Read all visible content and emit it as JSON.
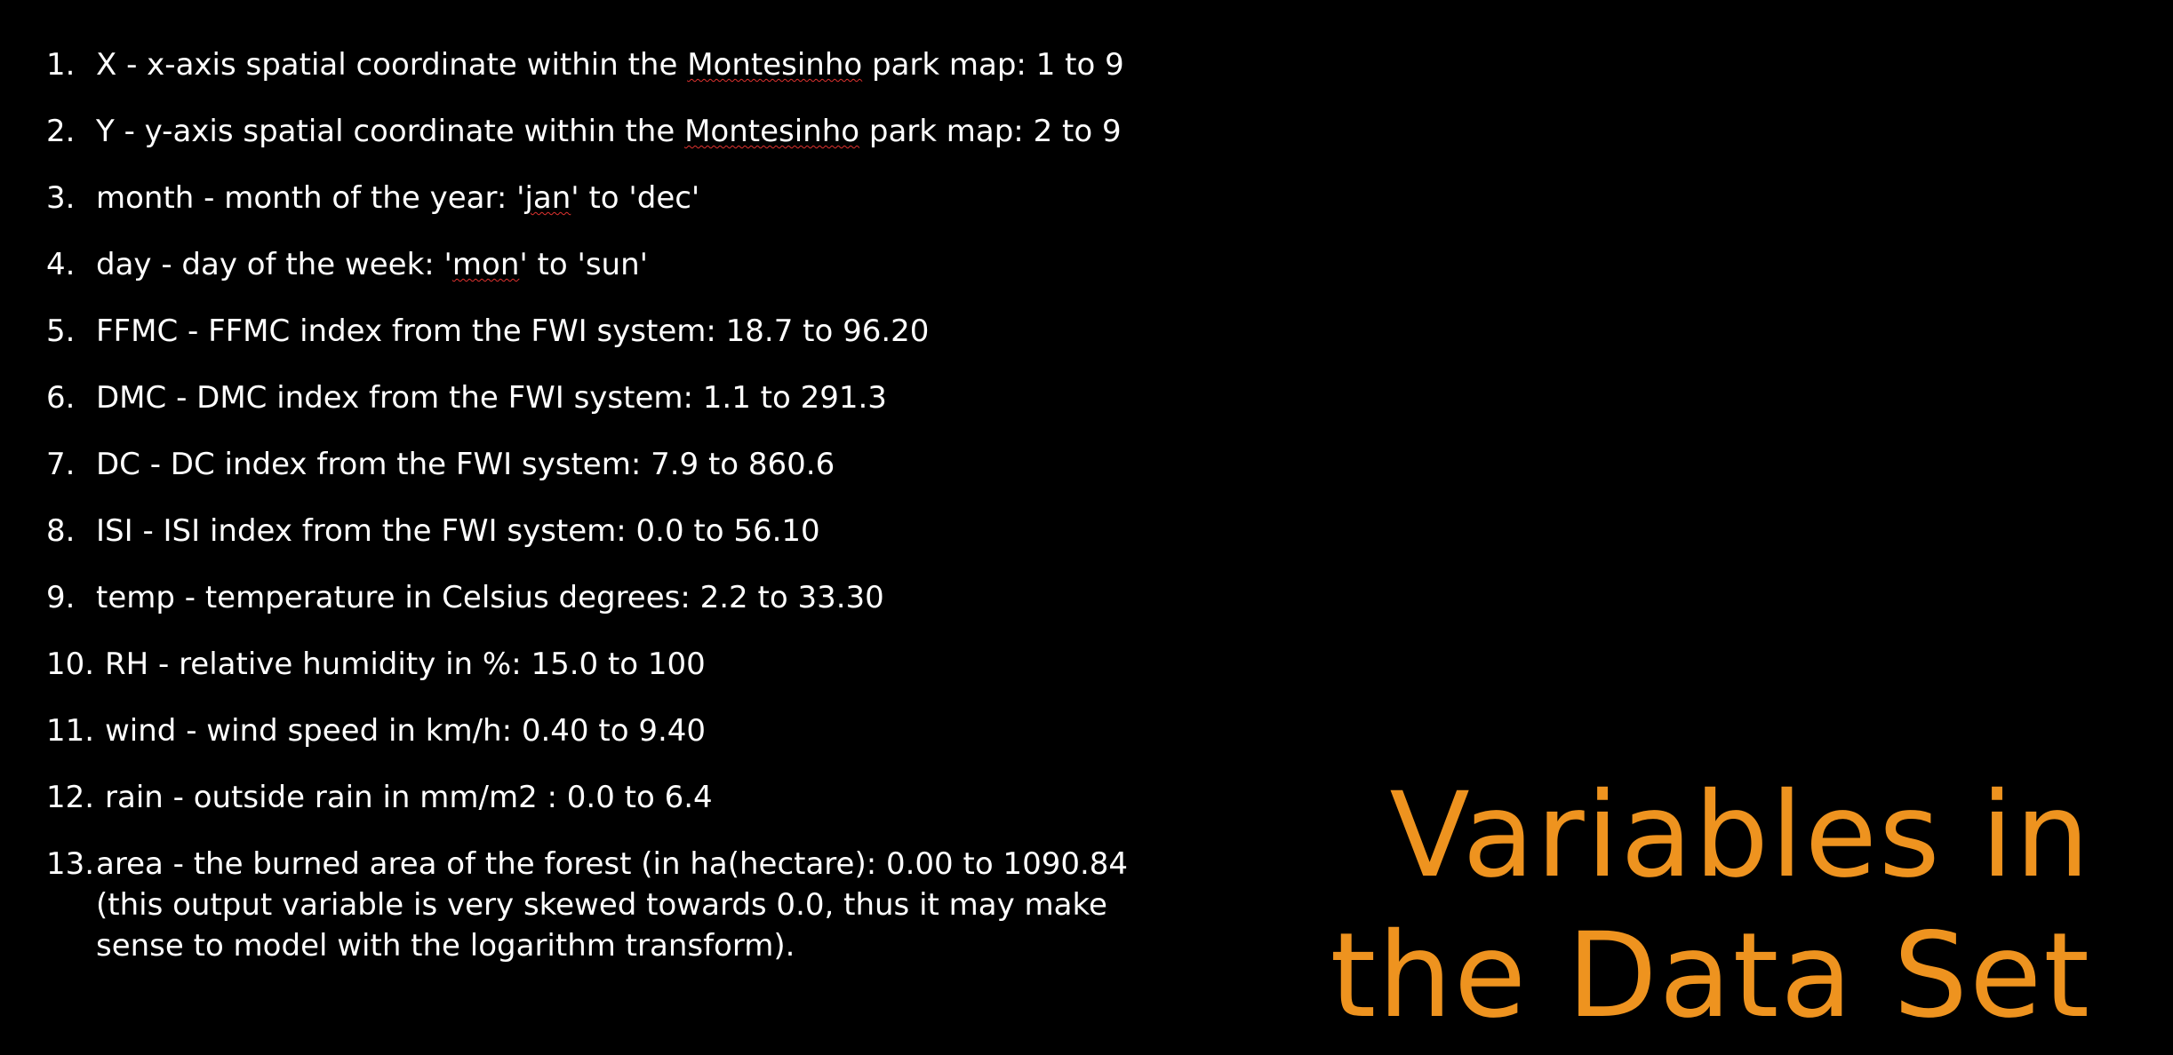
{
  "slide": {
    "title_line1": "Variables in",
    "title_line2": "the Data Set",
    "accent_color": "#ee931f",
    "background_color": "#000000"
  },
  "variables": [
    {
      "num": "1.",
      "pre": "X - x-axis spatial coordinate within the ",
      "mark": "Montesinho",
      "post": " park map: 1 to 9"
    },
    {
      "num": "2.",
      "pre": "Y - y-axis spatial coordinate within the ",
      "mark": "Montesinho",
      "post": " park map: 2 to 9"
    },
    {
      "num": "3.",
      "pre": "month - month of the year: '",
      "mark": "jan",
      "post": "' to 'dec'"
    },
    {
      "num": "4.",
      "pre": "day - day of the week: '",
      "mark": "mon",
      "post": "' to 'sun'"
    },
    {
      "num": "5.",
      "text": "FFMC - FFMC index from the FWI system: 18.7 to 96.20"
    },
    {
      "num": "6.",
      "text": "DMC - DMC index from the FWI system: 1.1 to 291.3"
    },
    {
      "num": "7.",
      "text": "DC - DC index from the FWI system: 7.9 to 860.6"
    },
    {
      "num": "8.",
      "text": "ISI - ISI index from the FWI system: 0.0 to 56.10"
    },
    {
      "num": "9.",
      "text": "temp - temperature in Celsius degrees: 2.2 to 33.30"
    },
    {
      "num": "10.",
      "text": "RH - relative humidity in %: 15.0 to 100"
    },
    {
      "num": "11.",
      "text": "wind - wind speed in km/h: 0.40 to 9.40"
    },
    {
      "num": "12.",
      "text": "rain - outside rain in mm/m2 : 0.0 to 6.4"
    },
    {
      "num": "13.",
      "lines": [
        "area - the burned area of the forest (in ha(hectare): 0.00 to 1090.84",
        "(this output variable is very skewed towards 0.0, thus it may make",
        "sense to model with the logarithm transform)."
      ]
    }
  ]
}
